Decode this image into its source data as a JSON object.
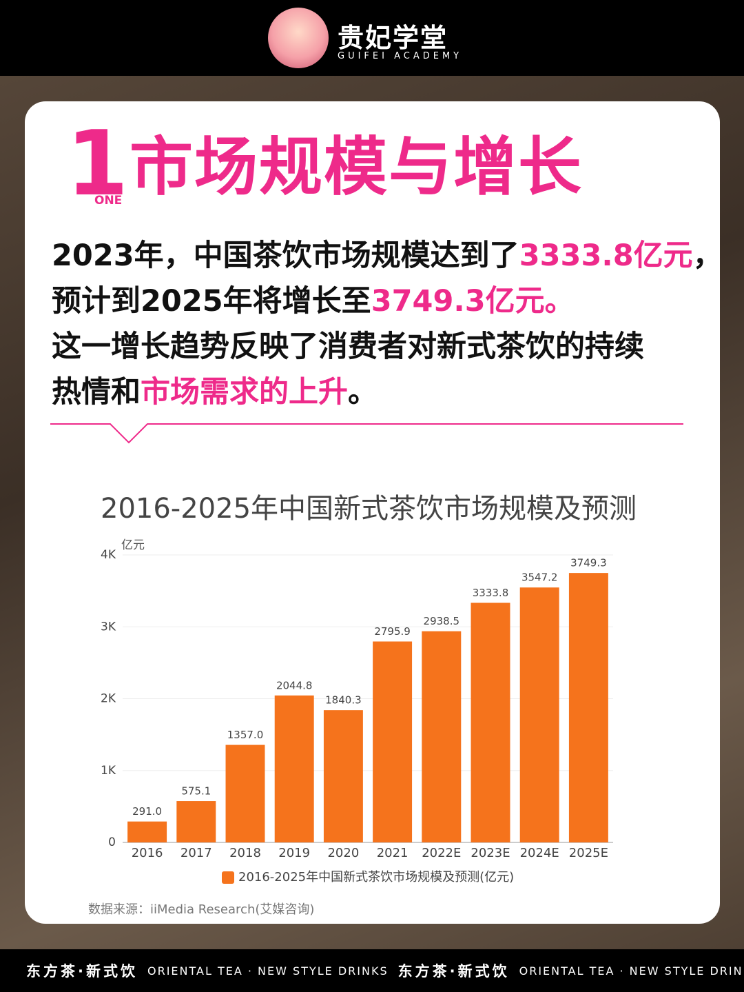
{
  "header": {
    "brand": "贵妃学堂",
    "brand_en": "GUIFEI ACADEMY"
  },
  "section": {
    "number": "1",
    "number_label": "ONE",
    "title": "市场规模与增长"
  },
  "paragraph": {
    "lines": [
      [
        {
          "text": "2023年，中国茶饮市场规模达到了",
          "highlight": false
        },
        {
          "text": "3333.8亿元",
          "highlight": true
        },
        {
          "text": "，",
          "highlight": false
        }
      ],
      [
        {
          "text": "预计到2025年将增长至",
          "highlight": false
        },
        {
          "text": "3749.3亿元。",
          "highlight": true
        }
      ],
      [
        {
          "text": "这一增长趋势反映了消费者对新式茶饮的持续",
          "highlight": false
        }
      ],
      [
        {
          "text": "热情和",
          "highlight": false
        },
        {
          "text": "市场需求的上升",
          "highlight": true
        },
        {
          "text": "。",
          "highlight": false
        }
      ]
    ]
  },
  "chart_data": {
    "type": "bar",
    "title": "2016-2025年中国新式茶饮市场规模及预测",
    "y_label": "亿元",
    "categories": [
      "2016",
      "2017",
      "2018",
      "2019",
      "2020",
      "2021",
      "2022E",
      "2023E",
      "2024E",
      "2025E"
    ],
    "series": [
      {
        "name": "2016-2025年中国新式茶饮市场规模及预测(亿元)",
        "color": "#f5731c",
        "values": [
          291.0,
          575.1,
          1357.0,
          2044.8,
          1840.3,
          2795.9,
          2938.5,
          3333.8,
          3547.2,
          3749.3
        ],
        "value_labels": [
          "291.0",
          "575.1",
          "1357.0",
          "2044.8",
          "1840.3",
          "2795.9",
          "2938.5",
          "3333.8",
          "3547.2",
          "3749.3"
        ]
      }
    ],
    "ylim": [
      0,
      4000
    ],
    "yticks": [
      0,
      {
        "value": 1000,
        "label": "1K"
      },
      {
        "value": 2000,
        "label": "2K"
      },
      {
        "value": 3000,
        "label": "3K"
      },
      {
        "value": 4000,
        "label": "4K"
      }
    ],
    "grid": true,
    "legend": "bottom",
    "source": "数据来源：iiMedia Research(艾媒咨询)"
  },
  "footer": {
    "items": [
      {
        "text": "东方茶·新式饮",
        "style": "zh"
      },
      {
        "text": "ORIENTAL TEA · NEW STYLE DRINKS",
        "style": "en"
      },
      {
        "text": "东方茶·新式饮",
        "style": "zh"
      },
      {
        "text": "ORIENTAL TEA · NEW STYLE DRINKS",
        "style": "en"
      }
    ]
  }
}
